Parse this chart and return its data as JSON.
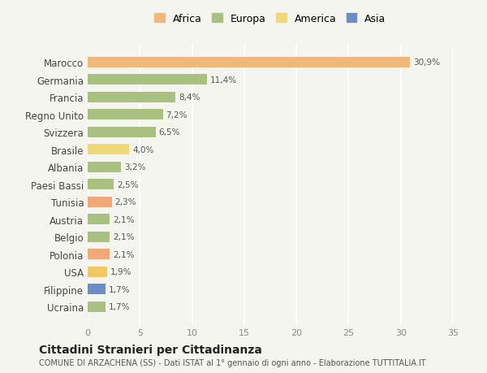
{
  "categories": [
    "Ucraina",
    "Filippine",
    "USA",
    "Polonia",
    "Belgio",
    "Austria",
    "Tunisia",
    "Paesi Bassi",
    "Albania",
    "Brasile",
    "Svizzera",
    "Regno Unito",
    "Francia",
    "Germania",
    "Marocco"
  ],
  "values": [
    1.7,
    1.7,
    1.9,
    2.1,
    2.1,
    2.1,
    2.3,
    2.5,
    3.2,
    4.0,
    6.5,
    7.2,
    8.4,
    11.4,
    30.9
  ],
  "labels": [
    "1,7%",
    "1,7%",
    "1,9%",
    "2,1%",
    "2,1%",
    "2,1%",
    "2,3%",
    "2,5%",
    "3,2%",
    "4,0%",
    "6,5%",
    "7,2%",
    "8,4%",
    "11,4%",
    "30,9%"
  ],
  "colors": [
    "#a8c080",
    "#6b8fc4",
    "#f0c864",
    "#f0a878",
    "#a8c080",
    "#a8c080",
    "#f0a878",
    "#a8c080",
    "#a8c080",
    "#f0d878",
    "#a8c080",
    "#a8c080",
    "#a8c080",
    "#a8c080",
    "#f0b87a"
  ],
  "legend": [
    {
      "label": "Africa",
      "color": "#f0b87a"
    },
    {
      "label": "Europa",
      "color": "#a8c080"
    },
    {
      "label": "America",
      "color": "#f0d878"
    },
    {
      "label": "Asia",
      "color": "#6b8fc4"
    }
  ],
  "xlim": [
    0,
    35
  ],
  "xticks": [
    0,
    5,
    10,
    15,
    20,
    25,
    30,
    35
  ],
  "title": "Cittadini Stranieri per Cittadinanza",
  "subtitle": "COMUNE DI ARZACHENA (SS) - Dati ISTAT al 1° gennaio di ogni anno - Elaborazione TUTTITALIA.IT",
  "bg_color": "#f5f5f0",
  "grid_color": "#ffffff",
  "bar_height": 0.6
}
